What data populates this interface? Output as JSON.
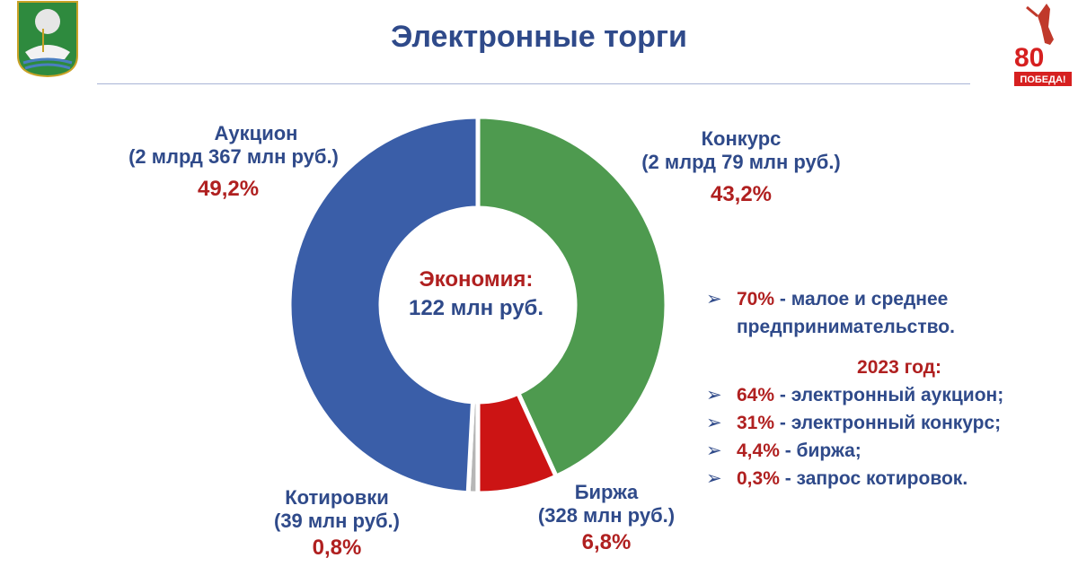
{
  "page": {
    "title": "Электронные торги"
  },
  "colors": {
    "auction": "#3a5ea8",
    "contest": "#4e9a4f",
    "exchange": "#cc1414",
    "quotes": "#b6b6b6",
    "title_blue": "#2f4a8a",
    "accent_red": "#b02020"
  },
  "logos": {
    "left_emblem": "city-coat-of-arms",
    "right_badge_text": "80",
    "right_badge_caption": "ПОБЕДА!"
  },
  "chart_data": {
    "type": "pie",
    "variant": "donut",
    "center_label": {
      "line1": "Экономия:",
      "line2": "122 млн руб."
    },
    "slices": [
      {
        "name": "Конкурс",
        "amount": "(2 млрд 79 млн руб.)",
        "value": 2079,
        "percent_label": "43,2%",
        "color": "#4e9a4f"
      },
      {
        "name": "Биржа",
        "amount": "(328 млн руб.)",
        "value": 328,
        "percent_label": "6,8%",
        "color": "#cc1414"
      },
      {
        "name": "Котировки",
        "amount": "(39 млн руб.)",
        "value": 39,
        "percent_label": "0,8%",
        "color": "#b6b6b6"
      },
      {
        "name": "Аукцион",
        "amount": "(2 млрд 367 млн руб.)",
        "value": 2367,
        "percent_label": "49,2%",
        "color": "#3a5ea8"
      }
    ]
  },
  "notes": {
    "sme": {
      "value": "70%",
      "text": " - малое и среднее предпринимательство."
    },
    "year_heading": "2023 год:",
    "items": [
      {
        "value": "64%",
        "text": " - электронный аукцион;"
      },
      {
        "value": "31%",
        "text": " - электронный конкурс;"
      },
      {
        "value": "4,4%",
        "text": " - биржа;"
      },
      {
        "value": "0,3%",
        "text": " - запрос котировок."
      }
    ]
  }
}
